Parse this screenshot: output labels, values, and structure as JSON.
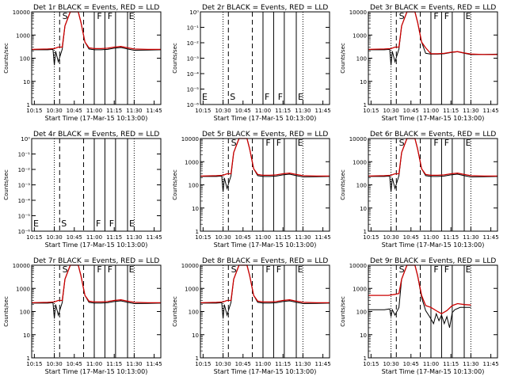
{
  "colors": {
    "events": "#000000",
    "lld": "#cc0000"
  },
  "panels": [
    {
      "title": "Det 1r BLACK = Events, RED = LLD",
      "xlabel": "Start Time (17-Mar-15 10:13:00)",
      "ylabel": "Counts/sec",
      "yticks": [
        "1",
        "10",
        "100",
        "1000",
        "10000"
      ],
      "xticks": [
        "10:15",
        "10:30",
        "10:45",
        "11:00",
        "11:15",
        "11:30",
        "11:45"
      ],
      "markers": [
        "S",
        "F",
        "F",
        "E"
      ],
      "has_data": true,
      "profile": "normal"
    },
    {
      "title": "Det 2r BLACK = Events, RED = LLD",
      "xlabel": "Start Time (17-Mar-15 10:13:00)",
      "ylabel": "Counts/sec",
      "yticks": [
        "10⁻⁶",
        "10⁻⁵",
        "10⁻⁴",
        "10⁻³",
        "10⁻²",
        "10⁻¹",
        "10⁰"
      ],
      "xticks": [
        "10:15",
        "10:30",
        "10:45",
        "11:00",
        "11:15",
        "11:30",
        "11:45"
      ],
      "markers": [
        "E",
        "S",
        "F",
        "F",
        "E"
      ],
      "has_data": false,
      "profile": "none"
    },
    {
      "title": "Det 3r BLACK = Events, RED = LLD",
      "xlabel": "Start Time (17-Mar-15 10:13:00)",
      "ylabel": "Counts/sec",
      "yticks": [
        "1",
        "10",
        "100",
        "1000",
        "10000"
      ],
      "xticks": [
        "10:15",
        "10:30",
        "10:45",
        "11:00",
        "11:15",
        "11:30",
        "11:45"
      ],
      "markers": [
        "S",
        "F",
        "F",
        "E"
      ],
      "has_data": true,
      "profile": "low"
    },
    {
      "title": "Det 4r BLACK = Events, RED = LLD",
      "xlabel": "Start Time (17-Mar-15 10:13:00)",
      "ylabel": "Counts/sec",
      "yticks": [
        "10⁻⁶",
        "10⁻⁵",
        "10⁻⁴",
        "10⁻³",
        "10⁻²",
        "10⁻¹",
        "10⁰"
      ],
      "xticks": [
        "10:15",
        "10:30",
        "10:45",
        "11:00",
        "11:15",
        "11:30",
        "11:45"
      ],
      "markers": [
        "E",
        "S",
        "F",
        "F",
        "E"
      ],
      "has_data": false,
      "profile": "none"
    },
    {
      "title": "Det 5r BLACK = Events, RED = LLD",
      "xlabel": "Start Time (17-Mar-15 10:13:00)",
      "ylabel": "Counts/sec",
      "yticks": [
        "1",
        "10",
        "100",
        "1000",
        "10000"
      ],
      "xticks": [
        "10:15",
        "10:30",
        "10:45",
        "11:00",
        "11:15",
        "11:30",
        "11:45"
      ],
      "markers": [
        "S",
        "F",
        "F",
        "E"
      ],
      "has_data": true,
      "profile": "normal"
    },
    {
      "title": "Det 6r BLACK = Events, RED = LLD",
      "xlabel": "Start Time (17-Mar-15 10:13:00)",
      "ylabel": "Counts/sec",
      "yticks": [
        "1",
        "10",
        "100",
        "1000",
        "10000"
      ],
      "xticks": [
        "10:15",
        "10:30",
        "10:45",
        "11:00",
        "11:15",
        "11:30",
        "11:45"
      ],
      "markers": [
        "S",
        "F",
        "F",
        "E"
      ],
      "has_data": true,
      "profile": "normal"
    },
    {
      "title": "Det 7r BLACK = Events, RED = LLD",
      "xlabel": "Start Time (17-Mar-15 10:13:00)",
      "ylabel": "Counts/sec",
      "yticks": [
        "1",
        "10",
        "100",
        "1000",
        "10000"
      ],
      "xticks": [
        "10:15",
        "10:30",
        "10:45",
        "11:00",
        "11:15",
        "11:30",
        "11:45"
      ],
      "markers": [
        "S",
        "F",
        "F",
        "E"
      ],
      "has_data": true,
      "profile": "normal"
    },
    {
      "title": "Det 8r BLACK = Events, RED = LLD",
      "xlabel": "Start Time (17-Mar-15 10:13:00)",
      "ylabel": "Counts/sec",
      "yticks": [
        "1",
        "10",
        "100",
        "1000",
        "10000"
      ],
      "xticks": [
        "10:15",
        "10:30",
        "10:45",
        "11:00",
        "11:15",
        "11:30",
        "11:45"
      ],
      "markers": [
        "S",
        "F",
        "F",
        "E"
      ],
      "has_data": true,
      "profile": "normal"
    },
    {
      "title": "Det 9r BLACK = Events, RED = LLD",
      "xlabel": "Start Time (17-Mar-15 10:13:00)",
      "ylabel": "Counts/sec",
      "yticks": [
        "1",
        "10",
        "100",
        "1000",
        "10000"
      ],
      "xticks": [
        "10:15",
        "10:30",
        "10:45",
        "11:00",
        "11:15",
        "11:30",
        "11:45"
      ],
      "markers": [
        "S",
        "F",
        "F",
        "E"
      ],
      "has_data": true,
      "profile": "noisy"
    }
  ],
  "chart_data": {
    "type": "line",
    "layout": "3x3 grid",
    "x_unit": "time (HH:MM)",
    "xlim": [
      "10:13",
      "11:50"
    ],
    "ylim_log": [
      1,
      10000
    ],
    "vertical_lines": {
      "dotted": [
        "10:30",
        "11:30"
      ],
      "dashed": [
        "10:34",
        "10:52"
      ],
      "solid": [
        "11:00",
        "11:08",
        "11:16",
        "11:25"
      ]
    },
    "series": [
      {
        "name": "Events",
        "color": "black",
        "x": [
          "10:13",
          "10:25",
          "10:29",
          "10:30",
          "10:31",
          "10:33",
          "10:36",
          "10:38",
          "10:42",
          "10:45",
          "10:48",
          "10:50",
          "10:53",
          "10:56",
          "11:00",
          "11:05",
          "11:10",
          "11:15",
          "11:20",
          "11:25",
          "11:30",
          "11:40",
          "11:50"
        ],
        "y": [
          230,
          230,
          240,
          50,
          200,
          70,
          250,
          2500,
          10000,
          10000,
          10000,
          3500,
          500,
          250,
          230,
          230,
          240,
          270,
          290,
          250,
          220,
          225,
          230
        ]
      },
      {
        "name": "LLD",
        "color": "red",
        "x": [
          "10:13",
          "10:25",
          "10:30",
          "10:33",
          "10:36",
          "10:38",
          "10:42",
          "10:45",
          "10:48",
          "10:50",
          "10:53",
          "10:56",
          "11:00",
          "11:05",
          "11:10",
          "11:15",
          "11:20",
          "11:25",
          "11:30",
          "11:40",
          "11:50"
        ],
        "y": [
          240,
          250,
          260,
          300,
          300,
          2500,
          10000,
          10000,
          10000,
          3500,
          500,
          280,
          260,
          260,
          270,
          300,
          320,
          280,
          250,
          240,
          240
        ]
      }
    ]
  }
}
